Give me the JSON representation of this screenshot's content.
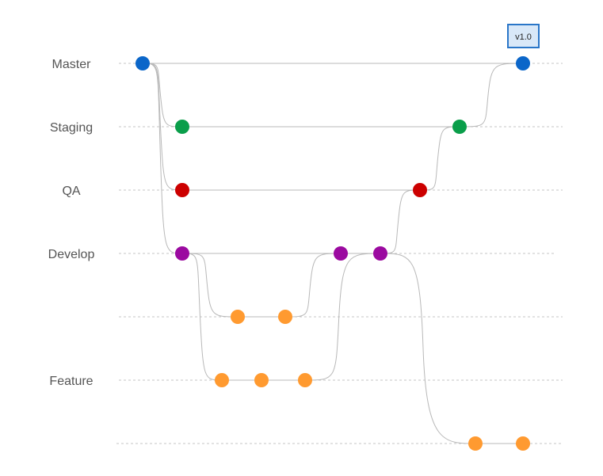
{
  "lanes": [
    {
      "id": "master",
      "label": "Master"
    },
    {
      "id": "staging",
      "label": "Staging"
    },
    {
      "id": "qa",
      "label": "QA"
    },
    {
      "id": "develop",
      "label": "Develop"
    },
    {
      "id": "feature_a",
      "label": ""
    },
    {
      "id": "feature",
      "label": "Feature"
    },
    {
      "id": "feature_c",
      "label": ""
    }
  ],
  "tag": {
    "label": "v1.0",
    "commit": "m2"
  },
  "colors": {
    "master": "#0b66c9",
    "staging": "#0a9e4a",
    "qa": "#cc0000",
    "develop": "#9b0aa0",
    "feature": "#ff9a30",
    "line": "#b8b8b8",
    "dashed": "#c4c4c4",
    "tag_fill": "#d9e8f8",
    "tag_border": "#2a76c8"
  },
  "commits": [
    {
      "id": "m1",
      "lane": "master"
    },
    {
      "id": "s1",
      "lane": "staging"
    },
    {
      "id": "q1",
      "lane": "qa"
    },
    {
      "id": "d1",
      "lane": "develop"
    },
    {
      "id": "fa1",
      "lane": "feature_a"
    },
    {
      "id": "fa2",
      "lane": "feature_a"
    },
    {
      "id": "fb1",
      "lane": "feature"
    },
    {
      "id": "fb2",
      "lane": "feature"
    },
    {
      "id": "fb3",
      "lane": "feature"
    },
    {
      "id": "d2",
      "lane": "develop"
    },
    {
      "id": "d3",
      "lane": "develop"
    },
    {
      "id": "q2",
      "lane": "qa"
    },
    {
      "id": "s2",
      "lane": "staging"
    },
    {
      "id": "m2",
      "lane": "master"
    },
    {
      "id": "fc1",
      "lane": "feature_c"
    },
    {
      "id": "fc2",
      "lane": "feature_c"
    }
  ],
  "edges": [
    [
      "m1",
      "m2"
    ],
    [
      "s1",
      "s2"
    ],
    [
      "q1",
      "q2"
    ],
    [
      "d1",
      "d3"
    ],
    [
      "fa1",
      "fa2"
    ],
    [
      "fb1",
      "fb3"
    ],
    [
      "fc1",
      "fc2"
    ],
    [
      "m1",
      "s1"
    ],
    [
      "m1",
      "q1"
    ],
    [
      "m1",
      "d1"
    ],
    [
      "d1",
      "fa1"
    ],
    [
      "d1",
      "fb1"
    ],
    [
      "fa2",
      "d2"
    ],
    [
      "fb3",
      "d3"
    ],
    [
      "d3",
      "q2"
    ],
    [
      "d3",
      "fc1"
    ],
    [
      "q2",
      "s2"
    ],
    [
      "s2",
      "m2"
    ]
  ]
}
